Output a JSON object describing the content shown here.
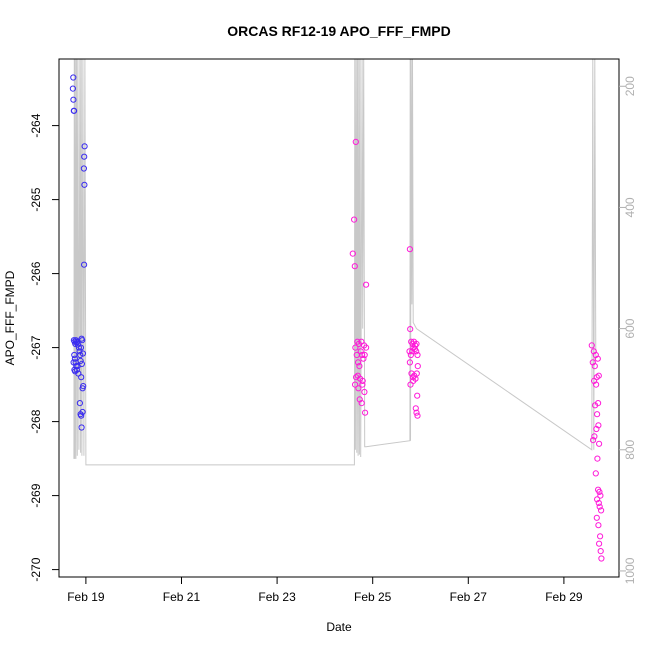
{
  "chart_data": {
    "type": "scatter",
    "title": "ORCAS RF12-19 APO_FFF_FMPD",
    "xlabel": "Date",
    "ylabel": "APO_FFF_FMPD",
    "xlim": [
      "2016-02-18 10:30",
      "2016-03-01 03:40"
    ],
    "ylim": [
      -270.1,
      -263.1
    ],
    "ylim_right": [
      1010,
      155
    ],
    "y_ticks": [
      -270,
      -269,
      -268,
      -267,
      -266,
      -265,
      -264
    ],
    "y_tick_labels": [
      "-270",
      "-269",
      "-268",
      "-267",
      "-266",
      "-265",
      "-264"
    ],
    "x_ticks": [
      "2016-02-19",
      "2016-02-21",
      "2016-02-23",
      "2016-02-25",
      "2016-02-27",
      "2016-02-29"
    ],
    "x_tick_labels": [
      "Feb 19",
      "Feb 21",
      "Feb 23",
      "Feb 25",
      "Feb 27",
      "Feb 29"
    ],
    "y2_ticks": [
      200,
      400,
      600,
      800,
      1000
    ],
    "y2_tick_labels": [
      "200",
      "400",
      "600",
      "800",
      "1000"
    ],
    "colors": {
      "point_early": "#3a2cf0",
      "point_late": "#ff1ad9",
      "line": "#c8c8c8",
      "axis": "#000000",
      "axis_right": "#b0b0b0"
    },
    "series": [
      {
        "kind": "points",
        "points": [
          [
            "2016-02-18 17:40",
            -263.35
          ],
          [
            "2016-02-18 17:30",
            -263.5
          ],
          [
            "2016-02-18 17:45",
            -263.65
          ],
          [
            "2016-02-18 17:55",
            -263.8
          ],
          [
            "2016-02-18 18:05",
            -263.8
          ],
          [
            "2016-02-18 18:00",
            -266.9
          ],
          [
            "2016-02-18 18:20",
            -266.92
          ],
          [
            "2016-02-18 18:40",
            -266.95
          ],
          [
            "2016-02-18 19:00",
            -266.9
          ],
          [
            "2016-02-18 19:20",
            -266.93
          ],
          [
            "2016-02-18 19:40",
            -266.92
          ],
          [
            "2016-02-18 20:00",
            -266.96
          ],
          [
            "2016-02-18 18:10",
            -267.1
          ],
          [
            "2016-02-18 18:30",
            -267.15
          ],
          [
            "2016-02-18 18:50",
            -267.2
          ],
          [
            "2016-02-18 19:10",
            -267.25
          ],
          [
            "2016-02-18 19:30",
            -267.3
          ],
          [
            "2016-02-18 19:50",
            -267.25
          ],
          [
            "2016-02-18 20:10",
            -267.35
          ],
          [
            "2016-02-18 17:50",
            -267.2
          ],
          [
            "2016-02-18 18:15",
            -267.3
          ],
          [
            "2016-02-18 18:35",
            -267.32
          ],
          [
            "2016-02-18 20:30",
            -267.0
          ],
          [
            "2016-02-18 20:50",
            -267.05
          ],
          [
            "2016-02-18 21:10",
            -267.1
          ],
          [
            "2016-02-18 21:30",
            -267.0
          ],
          [
            "2016-02-18 21:50",
            -266.88
          ],
          [
            "2016-02-18 22:10",
            -266.9
          ],
          [
            "2016-02-18 22:30",
            -267.08
          ],
          [
            "2016-02-18 21:20",
            -267.18
          ],
          [
            "2016-02-18 22:00",
            -267.22
          ],
          [
            "2016-02-18 21:40",
            -267.4
          ],
          [
            "2016-02-18 22:20",
            -267.55
          ],
          [
            "2016-02-18 22:40",
            -267.52
          ],
          [
            "2016-02-18 21:00",
            -267.75
          ],
          [
            "2016-02-18 21:20",
            -267.9
          ],
          [
            "2016-02-18 21:40",
            -267.92
          ],
          [
            "2016-02-18 22:20",
            -267.87
          ],
          [
            "2016-02-18 21:50",
            -268.08
          ],
          [
            "2016-02-18 23:20",
            -264.28
          ],
          [
            "2016-02-18 23:10",
            -264.42
          ],
          [
            "2016-02-18 23:00",
            -264.58
          ],
          [
            "2016-02-18 23:15",
            -264.8
          ],
          [
            "2016-02-18 23:05",
            -265.88
          ],
          [
            "2016-02-24 15:30",
            -264.22
          ],
          [
            "2016-02-24 14:40",
            -265.27
          ],
          [
            "2016-02-24 14:00",
            -265.73
          ],
          [
            "2016-02-24 15:00",
            -265.9
          ],
          [
            "2016-02-24 20:40",
            -266.15
          ],
          [
            "2016-02-24 15:20",
            -267.0
          ],
          [
            "2016-02-24 16:00",
            -267.1
          ],
          [
            "2016-02-24 16:40",
            -267.2
          ],
          [
            "2016-02-24 17:20",
            -267.25
          ],
          [
            "2016-02-24 18:00",
            -267.05
          ],
          [
            "2016-02-24 18:40",
            -267.1
          ],
          [
            "2016-02-24 19:20",
            -267.15
          ],
          [
            "2016-02-24 20:00",
            -267.1
          ],
          [
            "2016-02-24 20:40",
            -267.0
          ],
          [
            "2016-02-24 16:20",
            -266.92
          ],
          [
            "2016-02-24 17:00",
            -266.95
          ],
          [
            "2016-02-24 18:20",
            -266.92
          ],
          [
            "2016-02-24 19:40",
            -266.97
          ],
          [
            "2016-02-24 15:40",
            -267.4
          ],
          [
            "2016-02-24 16:30",
            -267.38
          ],
          [
            "2016-02-24 17:40",
            -267.42
          ],
          [
            "2016-02-24 19:00",
            -267.45
          ],
          [
            "2016-02-24 15:10",
            -267.5
          ],
          [
            "2016-02-24 16:50",
            -267.55
          ],
          [
            "2016-02-24 18:50",
            -267.5
          ],
          [
            "2016-02-24 19:50",
            -267.6
          ],
          [
            "2016-02-24 17:30",
            -267.7
          ],
          [
            "2016-02-24 18:30",
            -267.75
          ],
          [
            "2016-02-24 20:10",
            -267.88
          ],
          [
            "2016-02-25 18:40",
            -265.67
          ],
          [
            "2016-02-25 18:50",
            -266.75
          ],
          [
            "2016-02-25 19:20",
            -266.92
          ],
          [
            "2016-02-25 20:00",
            -266.95
          ],
          [
            "2016-02-25 20:40",
            -266.92
          ],
          [
            "2016-02-25 21:20",
            -266.97
          ],
          [
            "2016-02-25 22:00",
            -266.95
          ],
          [
            "2016-02-25 18:30",
            -267.05
          ],
          [
            "2016-02-25 19:10",
            -267.1
          ],
          [
            "2016-02-25 19:50",
            -267.05
          ],
          [
            "2016-02-25 20:30",
            -267.0
          ],
          [
            "2016-02-25 21:10",
            -267.02
          ],
          [
            "2016-02-25 21:50",
            -267.05
          ],
          [
            "2016-02-25 22:30",
            -267.1
          ],
          [
            "2016-02-25 18:40",
            -267.2
          ],
          [
            "2016-02-25 19:30",
            -267.35
          ],
          [
            "2016-02-25 20:10",
            -267.4
          ],
          [
            "2016-02-25 20:50",
            -267.38
          ],
          [
            "2016-02-25 21:30",
            -267.42
          ],
          [
            "2016-02-25 22:10",
            -267.35
          ],
          [
            "2016-02-25 22:40",
            -267.25
          ],
          [
            "2016-02-25 19:00",
            -267.5
          ],
          [
            "2016-02-25 20:20",
            -267.45
          ],
          [
            "2016-02-25 22:20",
            -267.65
          ],
          [
            "2016-02-25 21:40",
            -267.82
          ],
          [
            "2016-02-25 22:00",
            -267.88
          ],
          [
            "2016-02-25 22:30",
            -267.92
          ],
          [
            "2016-02-29 14:00",
            -266.97
          ],
          [
            "2016-02-29 15:00",
            -267.05
          ],
          [
            "2016-02-29 16:00",
            -267.1
          ],
          [
            "2016-02-29 17:00",
            -267.15
          ],
          [
            "2016-02-29 14:30",
            -267.2
          ],
          [
            "2016-02-29 15:30",
            -267.25
          ],
          [
            "2016-02-29 16:30",
            -267.4
          ],
          [
            "2016-02-29 17:30",
            -267.38
          ],
          [
            "2016-02-29 15:10",
            -267.45
          ],
          [
            "2016-02-29 16:10",
            -267.5
          ],
          [
            "2016-02-29 17:10",
            -267.75
          ],
          [
            "2016-02-29 15:40",
            -267.78
          ],
          [
            "2016-02-29 16:40",
            -267.9
          ],
          [
            "2016-02-29 17:20",
            -268.05
          ],
          [
            "2016-02-29 16:20",
            -268.1
          ],
          [
            "2016-02-29 15:20",
            -268.2
          ],
          [
            "2016-02-29 14:40",
            -268.25
          ],
          [
            "2016-02-29 17:40",
            -268.3
          ],
          [
            "2016-02-29 16:50",
            -268.5
          ],
          [
            "2016-02-29 16:00",
            -268.7
          ],
          [
            "2016-02-29 17:10",
            -268.92
          ],
          [
            "2016-02-29 17:50",
            -268.95
          ],
          [
            "2016-02-29 18:20",
            -269.0
          ],
          [
            "2016-02-29 16:40",
            -269.05
          ],
          [
            "2016-02-29 17:30",
            -269.1
          ],
          [
            "2016-02-29 18:00",
            -269.15
          ],
          [
            "2016-02-29 18:40",
            -269.2
          ],
          [
            "2016-02-29 16:30",
            -269.3
          ],
          [
            "2016-02-29 17:20",
            -269.4
          ],
          [
            "2016-02-29 18:10",
            -269.55
          ],
          [
            "2016-02-29 17:40",
            -269.65
          ],
          [
            "2016-02-29 18:30",
            -269.75
          ],
          [
            "2016-02-29 18:50",
            -269.85
          ]
        ]
      },
      {
        "kind": "line",
        "points_y2": [
          [
            "2016-02-18 18:00",
            815
          ],
          [
            "2016-02-18 18:10",
            150
          ],
          [
            "2016-02-18 18:25",
            815
          ],
          [
            "2016-02-18 18:40",
            150
          ],
          [
            "2016-02-18 19:00",
            815
          ],
          [
            "2016-02-18 19:20",
            150
          ],
          [
            "2016-02-18 19:40",
            810
          ],
          [
            "2016-02-18 20:00",
            150
          ],
          [
            "2016-02-18 20:30",
            800
          ],
          [
            "2016-02-18 21:00",
            150
          ],
          [
            "2016-02-18 21:20",
            805
          ],
          [
            "2016-02-18 21:40",
            150
          ],
          [
            "2016-02-18 22:00",
            810
          ],
          [
            "2016-02-18 22:30",
            150
          ],
          [
            "2016-02-18 23:00",
            810
          ],
          [
            "2016-02-18 23:30",
            150
          ],
          [
            "2016-02-19 00:00",
            825
          ],
          [
            "2016-02-24 14:50",
            825
          ],
          [
            "2016-02-24 15:00",
            150
          ],
          [
            "2016-02-24 15:20",
            800
          ],
          [
            "2016-02-24 15:40",
            150
          ],
          [
            "2016-02-24 16:00",
            805
          ],
          [
            "2016-02-24 16:20",
            150
          ],
          [
            "2016-02-24 16:40",
            810
          ],
          [
            "2016-02-24 17:00",
            150
          ],
          [
            "2016-02-24 17:20",
            808
          ],
          [
            "2016-02-24 17:40",
            150
          ],
          [
            "2016-02-24 18:00",
            812
          ],
          [
            "2016-02-24 18:40",
            150
          ],
          [
            "2016-02-24 19:00",
            600
          ],
          [
            "2016-02-24 19:30",
            150
          ],
          [
            "2016-02-24 20:00",
            795
          ],
          [
            "2016-02-24 20:40",
            795
          ],
          [
            "2016-02-25 18:40",
            785
          ],
          [
            "2016-02-25 18:50",
            150
          ],
          [
            "2016-02-25 19:00",
            785
          ],
          [
            "2016-02-25 19:20",
            150
          ],
          [
            "2016-02-25 19:40",
            560
          ],
          [
            "2016-02-25 20:00",
            150
          ],
          [
            "2016-02-25 20:20",
            590
          ],
          [
            "2016-02-25 22:00",
            600
          ],
          [
            "2016-02-29 14:00",
            800
          ],
          [
            "2016-02-29 14:30",
            150
          ],
          [
            "2016-02-29 15:00",
            800
          ],
          [
            "2016-02-29 15:30",
            150
          ],
          [
            "2016-02-29 16:00",
            650
          ]
        ]
      }
    ]
  }
}
